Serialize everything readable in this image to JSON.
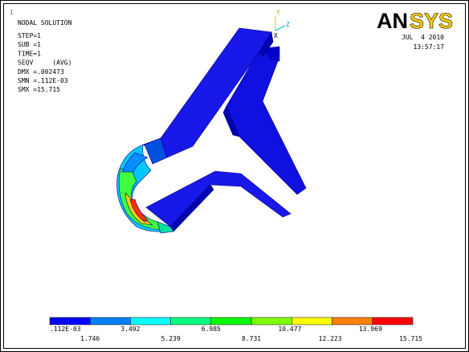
{
  "viewport": {
    "label": "1"
  },
  "header": {
    "title": "NODAL SOLUTION",
    "lines": [
      "STEP=1",
      "SUB =1",
      "TIME=1",
      "SEQV     (AVG)",
      "DMX =.002473",
      "SMN =.112E-03",
      "SMX =15.715"
    ]
  },
  "logo": {
    "an": "AN",
    "sys": "SYS"
  },
  "timestamp": {
    "date": "JUL  4 2010",
    "time": "13:57:17"
  },
  "triad": {
    "y": "Y",
    "z": "Z",
    "x": "X"
  },
  "legend": {
    "colors": [
      "#0000ff",
      "#0080ff",
      "#00ffff",
      "#00ff80",
      "#00ff00",
      "#80ff00",
      "#ffff00",
      "#ff8000",
      "#ff0000"
    ],
    "labels": [
      ".112E-03",
      "1.746",
      "3.492",
      "5.239",
      "6.985",
      "8.731",
      "10.477",
      "12.223",
      "13.969",
      "15.715"
    ]
  }
}
